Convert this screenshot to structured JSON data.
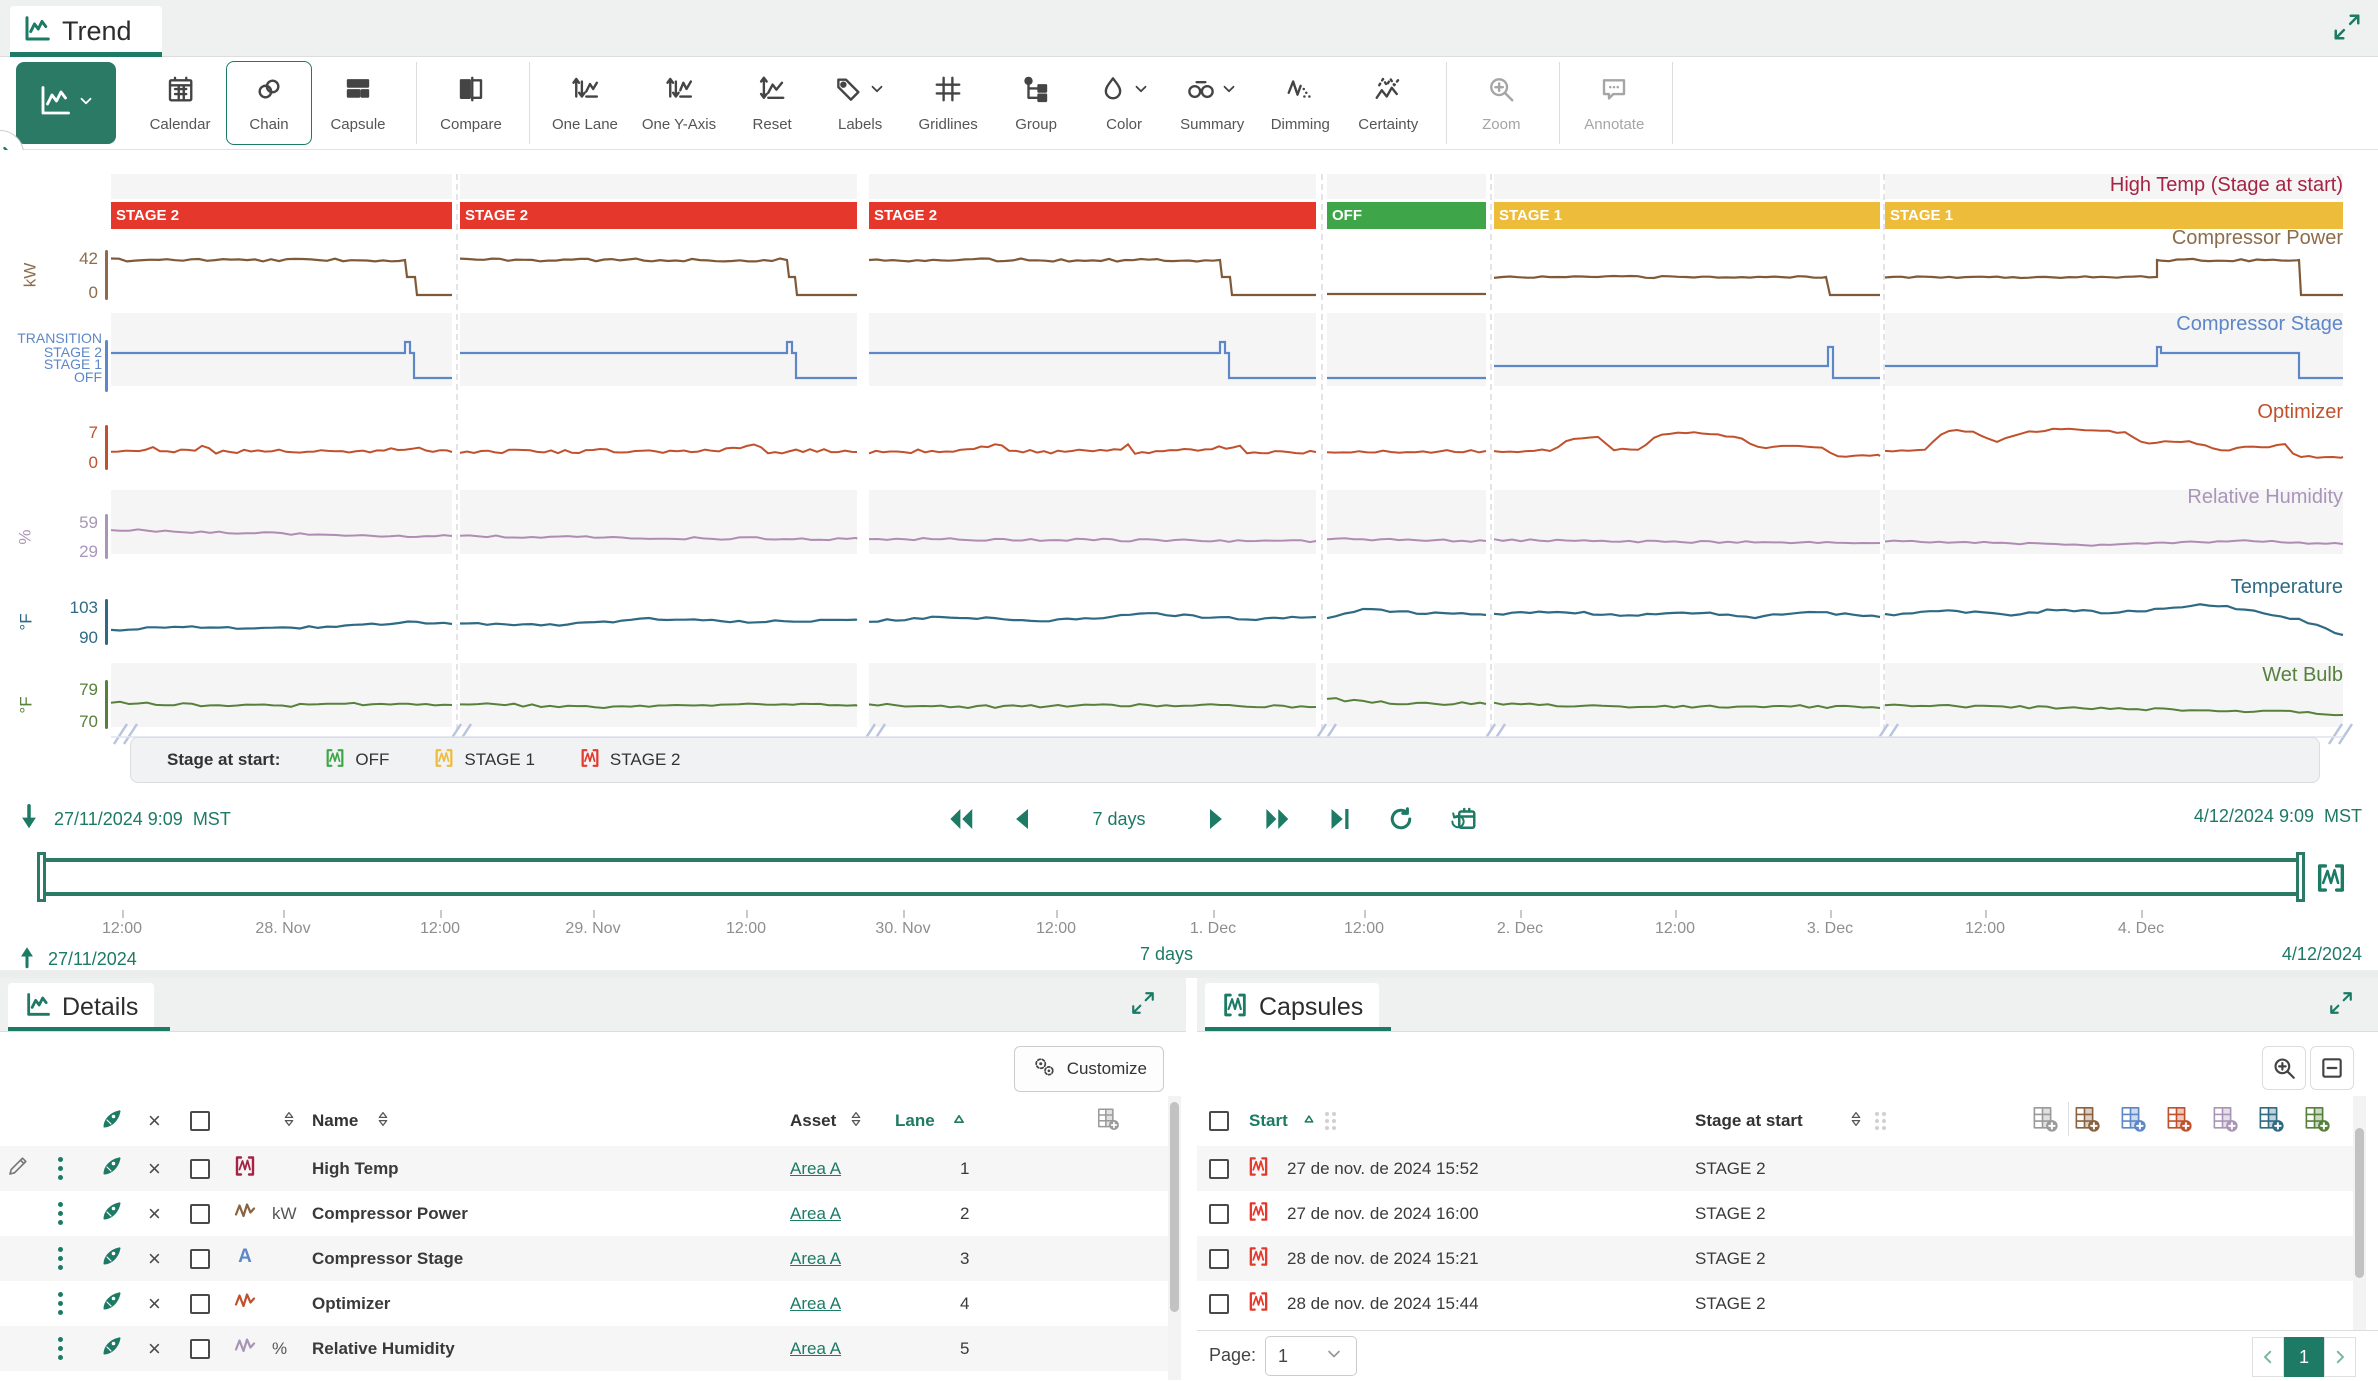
{
  "app": {
    "accent": "#1d7a64"
  },
  "tabbar": {
    "tab": "Trend"
  },
  "toolbar": {
    "buttons": [
      {
        "icon": "trend-view-icon",
        "label": "",
        "variant": "primary",
        "dropdown": true
      },
      {
        "icon": "calendar-icon",
        "label": "Calendar"
      },
      {
        "icon": "chain-icon",
        "label": "Chain",
        "variant": "selected"
      },
      {
        "icon": "capsule-icon",
        "label": "Capsule"
      },
      {
        "divider": true
      },
      {
        "icon": "compare-icon",
        "label": "Compare"
      },
      {
        "divider": true
      },
      {
        "icon": "one-lane-icon",
        "label": "One Lane"
      },
      {
        "icon": "one-y-axis-icon",
        "label": "One Y-Axis"
      },
      {
        "icon": "reset-icon",
        "label": "Reset"
      },
      {
        "icon": "labels-icon",
        "label": "Labels",
        "dropdown": true
      },
      {
        "icon": "gridlines-icon",
        "label": "Gridlines"
      },
      {
        "icon": "group-icon",
        "label": "Group"
      },
      {
        "icon": "color-icon",
        "label": "Color",
        "dropdown": true
      },
      {
        "icon": "summary-icon",
        "label": "Summary",
        "dropdown": true
      },
      {
        "icon": "dimming-icon",
        "label": "Dimming"
      },
      {
        "icon": "certainty-icon",
        "label": "Certainty"
      },
      {
        "divider": true
      },
      {
        "icon": "zoom-icon",
        "label": "Zoom",
        "variant": "disabled"
      },
      {
        "divider": true
      },
      {
        "icon": "annotate-icon",
        "label": "Annotate",
        "variant": "disabled"
      },
      {
        "divider": true
      }
    ]
  },
  "chart": {
    "lanes": [
      {
        "label": "High Temp (Stage at start)",
        "color": "#a52444"
      },
      {
        "label": "Compressor Power",
        "color": "#8d6c49",
        "unit": "kW",
        "ticks": [
          "42",
          "0"
        ]
      },
      {
        "label": "Compressor Stage",
        "color": "#5d87c6",
        "string_values": [
          "TRANSITION",
          "STAGE 2",
          "STAGE 1",
          "OFF"
        ]
      },
      {
        "label": "Optimizer",
        "color": "#c0512c",
        "ticks": [
          "7",
          "0"
        ]
      },
      {
        "label": "Relative Humidity",
        "color": "#a995b8",
        "unit": "%",
        "ticks": [
          "59",
          "29"
        ]
      },
      {
        "label": "Temperature",
        "color": "#2f6a85",
        "unit": "°F",
        "ticks": [
          "103",
          "90"
        ]
      },
      {
        "label": "Wet Bulb",
        "color": "#57803c",
        "unit": "°F",
        "ticks": [
          "79",
          "70"
        ]
      }
    ],
    "segments": [
      {
        "stage": "STAGE 2",
        "color": "#e5372b"
      },
      {
        "stage": "STAGE 2",
        "color": "#e5372b"
      },
      {
        "stage": "STAGE 2",
        "color": "#e5372b"
      },
      {
        "stage": "OFF",
        "color": "#3ea648"
      },
      {
        "stage": "STAGE 1",
        "color": "#eebc3b"
      },
      {
        "stage": "STAGE 1",
        "color": "#eebc3b"
      }
    ],
    "legend": {
      "title": "Stage at start:",
      "items": [
        {
          "label": "OFF",
          "color": "#3ea648"
        },
        {
          "label": "STAGE 1",
          "color": "#eebc3b"
        },
        {
          "label": "STAGE 2",
          "color": "#e5372b"
        }
      ]
    }
  },
  "timebar": {
    "start": "27/11/2024 9:09",
    "start_tz": "MST",
    "duration": "7 days",
    "end": "4/12/2024 9:09",
    "end_tz": "MST"
  },
  "timeline": {
    "ticks": [
      "12:00",
      "28. Nov",
      "12:00",
      "29. Nov",
      "12:00",
      "30. Nov",
      "12:00",
      "1. Dec",
      "12:00",
      "2. Dec",
      "12:00",
      "3. Dec",
      "12:00",
      "4. Dec"
    ],
    "range_start": "27/11/2024",
    "range_duration": "7 days",
    "range_end": "4/12/2024"
  },
  "details": {
    "tab": "Details",
    "customize": "Customize",
    "columns": {
      "name": "Name",
      "asset": "Asset",
      "lane": "Lane"
    },
    "rows": [
      {
        "icon": "capsule-signal",
        "color": "#a52444",
        "unit": "",
        "name": "High Temp",
        "asset": "Area A",
        "lane": "1"
      },
      {
        "icon": "wave-signal",
        "color": "#8a6240",
        "unit": "kW",
        "name": "Compressor Power",
        "asset": "Area A",
        "lane": "2"
      },
      {
        "icon": "string-signal",
        "color": "#5d87c6",
        "unit": "",
        "name": "Compressor Stage",
        "asset": "Area A",
        "lane": "3"
      },
      {
        "icon": "wave-signal",
        "color": "#c0512c",
        "unit": "",
        "name": "Optimizer",
        "asset": "Area A",
        "lane": "4"
      },
      {
        "icon": "wave-signal",
        "color": "#a995b8",
        "unit": "%",
        "name": "Relative Humidity",
        "asset": "Area A",
        "lane": "5"
      }
    ]
  },
  "capsules": {
    "tab": "Capsules",
    "columns": {
      "start": "Start",
      "stage": "Stage at start"
    },
    "column_tool_colors": [
      "#9a9a9a",
      "#8a6240",
      "#5d87c6",
      "#c0512c",
      "#a995b8",
      "#2f6a85",
      "#57803c"
    ],
    "rows": [
      {
        "start": "27 de nov. de 2024 15:52",
        "stage": "STAGE 2",
        "color": "#e5372b"
      },
      {
        "start": "27 de nov. de 2024 16:00",
        "stage": "STAGE 2",
        "color": "#e5372b"
      },
      {
        "start": "28 de nov. de 2024 15:21",
        "stage": "STAGE 2",
        "color": "#e5372b"
      },
      {
        "start": "28 de nov. de 2024 15:44",
        "stage": "STAGE 2",
        "color": "#e5372b"
      }
    ],
    "pagination": {
      "label": "Page:",
      "value": "1",
      "page": "1"
    }
  }
}
